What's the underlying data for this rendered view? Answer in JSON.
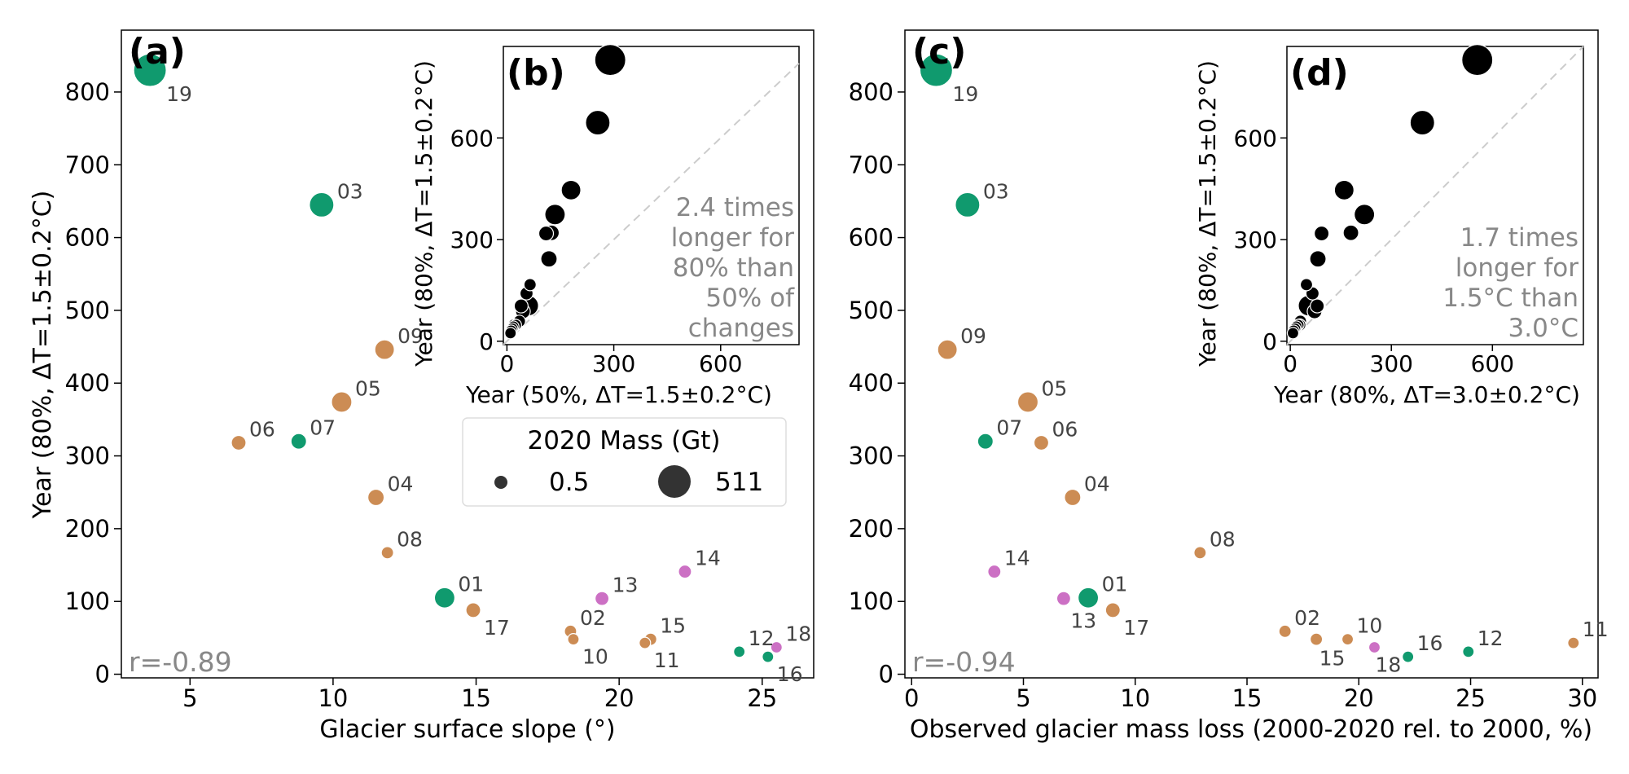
{
  "colors": {
    "green": "#109a6e",
    "orange": "#cc8c54",
    "pink": "#cc70c4",
    "black": "#000000",
    "grey_text": "#888888",
    "diag": "#cccccc"
  },
  "chart_data": [
    {
      "panel": "(a)",
      "type": "scatter",
      "xlabel": "Glacier surface slope (°)",
      "ylabel": "Year (80%, ΔT=1.5±0.2°C)",
      "xlim": [
        2.6,
        26.8
      ],
      "ylim": [
        -5,
        885
      ],
      "xticks": [
        5,
        10,
        15,
        20,
        25
      ],
      "yticks": [
        0,
        100,
        200,
        300,
        400,
        500,
        600,
        700,
        800
      ],
      "annotation": "r=-0.89",
      "points": [
        {
          "label": "19",
          "x": 3.6,
          "y": 830,
          "color": "green",
          "size": 40,
          "dx": 0,
          "dy": 38
        },
        {
          "label": "03",
          "x": 9.6,
          "y": 645,
          "color": "green",
          "size": 30,
          "dx": 4,
          "dy": -8
        },
        {
          "label": "09",
          "x": 11.8,
          "y": 446,
          "color": "orange",
          "size": 24,
          "dx": 4,
          "dy": -8
        },
        {
          "label": "05",
          "x": 10.3,
          "y": 374,
          "color": "orange",
          "size": 25,
          "dx": 4,
          "dy": -8
        },
        {
          "label": "06",
          "x": 6.7,
          "y": 318,
          "color": "orange",
          "size": 18,
          "dx": 4,
          "dy": -8
        },
        {
          "label": "07",
          "x": 8.8,
          "y": 320,
          "color": "green",
          "size": 19,
          "dx": 4,
          "dy": -8
        },
        {
          "label": "04",
          "x": 11.5,
          "y": 243,
          "color": "orange",
          "size": 20,
          "dx": 4,
          "dy": -8
        },
        {
          "label": "08",
          "x": 11.9,
          "y": 167,
          "color": "orange",
          "size": 15,
          "dx": 4,
          "dy": -8
        },
        {
          "label": "01",
          "x": 13.9,
          "y": 105,
          "color": "green",
          "size": 25,
          "dx": 4,
          "dy": -8
        },
        {
          "label": "17",
          "x": 14.9,
          "y": 88,
          "color": "orange",
          "size": 18,
          "dx": 4,
          "dy": 30
        },
        {
          "label": "13",
          "x": 19.4,
          "y": 104,
          "color": "pink",
          "size": 17,
          "dx": 4,
          "dy": -8
        },
        {
          "label": "14",
          "x": 22.3,
          "y": 141,
          "color": "pink",
          "size": 16,
          "dx": 4,
          "dy": -8
        },
        {
          "label": "02",
          "x": 18.3,
          "y": 59,
          "color": "orange",
          "size": 15,
          "dx": 4,
          "dy": -8
        },
        {
          "label": "10",
          "x": 18.4,
          "y": 48,
          "color": "orange",
          "size": 14,
          "dx": 4,
          "dy": 30
        },
        {
          "label": "15",
          "x": 21.1,
          "y": 48,
          "color": "orange",
          "size": 15,
          "dx": 4,
          "dy": -8
        },
        {
          "label": "11",
          "x": 20.9,
          "y": 43,
          "color": "orange",
          "size": 14,
          "dx": 4,
          "dy": 30
        },
        {
          "label": "12",
          "x": 24.2,
          "y": 31,
          "color": "green",
          "size": 14,
          "dx": 4,
          "dy": -8
        },
        {
          "label": "18",
          "x": 25.5,
          "y": 37,
          "color": "pink",
          "size": 14,
          "dx": 4,
          "dy": -8
        },
        {
          "label": "16",
          "x": 25.2,
          "y": 24,
          "color": "green",
          "size": 14,
          "dx": 4,
          "dy": 30
        }
      ]
    },
    {
      "panel": "(b)",
      "type": "scatter",
      "xlabel": "Year (50%, ΔT=1.5±0.2°C)",
      "ylabel": "Year (80%, ΔT=1.5±0.2°C)",
      "xlim": [
        -10,
        820
      ],
      "ylim": [
        -10,
        870
      ],
      "xticks": [
        0,
        300,
        600
      ],
      "yticks": [
        0,
        300,
        600
      ],
      "annotation": [
        "2.4 times",
        "longer for",
        "80% than",
        "50% of",
        "changes"
      ],
      "points": [
        {
          "x": 290,
          "y": 830,
          "size": 38
        },
        {
          "x": 255,
          "y": 645,
          "size": 30
        },
        {
          "x": 180,
          "y": 446,
          "size": 24
        },
        {
          "x": 135,
          "y": 374,
          "size": 25
        },
        {
          "x": 125,
          "y": 320,
          "size": 19
        },
        {
          "x": 110,
          "y": 318,
          "size": 18
        },
        {
          "x": 118,
          "y": 243,
          "size": 20
        },
        {
          "x": 65,
          "y": 167,
          "size": 15
        },
        {
          "x": 55,
          "y": 141,
          "size": 16
        },
        {
          "x": 60,
          "y": 105,
          "size": 25
        },
        {
          "x": 40,
          "y": 104,
          "size": 17
        },
        {
          "x": 45,
          "y": 88,
          "size": 18
        },
        {
          "x": 35,
          "y": 59,
          "size": 15
        },
        {
          "x": 25,
          "y": 48,
          "size": 14
        },
        {
          "x": 20,
          "y": 48,
          "size": 15
        },
        {
          "x": 18,
          "y": 43,
          "size": 14
        },
        {
          "x": 15,
          "y": 37,
          "size": 14
        },
        {
          "x": 12,
          "y": 31,
          "size": 14
        },
        {
          "x": 10,
          "y": 24,
          "size": 14
        }
      ]
    },
    {
      "panel": "(c)",
      "type": "scatter",
      "xlabel": "Observed glacier mass loss (2000-2020 rel. to 2000, %)",
      "ylabel": "",
      "xlim": [
        -0.3,
        30.7
      ],
      "ylim": [
        -5,
        885
      ],
      "xticks": [
        0,
        5,
        10,
        15,
        20,
        25,
        30
      ],
      "yticks": [
        0,
        100,
        200,
        300,
        400,
        500,
        600,
        700,
        800
      ],
      "annotation": "r=-0.94",
      "points": [
        {
          "label": "19",
          "x": 1.1,
          "y": 830,
          "color": "green",
          "size": 40,
          "dx": 0,
          "dy": 38
        },
        {
          "label": "03",
          "x": 2.5,
          "y": 645,
          "color": "green",
          "size": 30,
          "dx": 4,
          "dy": -8
        },
        {
          "label": "09",
          "x": 1.6,
          "y": 446,
          "color": "orange",
          "size": 24,
          "dx": 4,
          "dy": -8
        },
        {
          "label": "05",
          "x": 5.2,
          "y": 374,
          "color": "orange",
          "size": 25,
          "dx": 4,
          "dy": -8
        },
        {
          "label": "07",
          "x": 3.3,
          "y": 320,
          "color": "green",
          "size": 19,
          "dx": 4,
          "dy": -8
        },
        {
          "label": "06",
          "x": 5.8,
          "y": 318,
          "color": "orange",
          "size": 18,
          "dx": 4,
          "dy": -8
        },
        {
          "label": "04",
          "x": 7.2,
          "y": 243,
          "color": "orange",
          "size": 20,
          "dx": 4,
          "dy": -8
        },
        {
          "label": "08",
          "x": 12.9,
          "y": 167,
          "color": "orange",
          "size": 15,
          "dx": 4,
          "dy": -8
        },
        {
          "label": "14",
          "x": 3.7,
          "y": 141,
          "color": "pink",
          "size": 16,
          "dx": 4,
          "dy": -8
        },
        {
          "label": "13",
          "x": 6.8,
          "y": 104,
          "color": "pink",
          "size": 17,
          "dx": 0,
          "dy": 36
        },
        {
          "label": "01",
          "x": 7.9,
          "y": 105,
          "color": "green",
          "size": 25,
          "dx": 4,
          "dy": -8
        },
        {
          "label": "17",
          "x": 9.0,
          "y": 88,
          "color": "orange",
          "size": 18,
          "dx": 4,
          "dy": 30
        },
        {
          "label": "02",
          "x": 16.7,
          "y": 59,
          "color": "orange",
          "size": 15,
          "dx": 4,
          "dy": -8
        },
        {
          "label": "15",
          "x": 18.1,
          "y": 48,
          "color": "orange",
          "size": 15,
          "dx": -4,
          "dy": 32
        },
        {
          "label": "10",
          "x": 19.5,
          "y": 48,
          "color": "orange",
          "size": 14,
          "dx": 4,
          "dy": -8
        },
        {
          "label": "18",
          "x": 20.7,
          "y": 37,
          "color": "pink",
          "size": 14,
          "dx": -6,
          "dy": 30
        },
        {
          "label": "16",
          "x": 22.2,
          "y": 24,
          "color": "green",
          "size": 14,
          "dx": 4,
          "dy": -8
        },
        {
          "label": "12",
          "x": 24.9,
          "y": 31,
          "color": "green",
          "size": 14,
          "dx": 4,
          "dy": -8
        },
        {
          "label": "11",
          "x": 29.6,
          "y": 43,
          "color": "orange",
          "size": 14,
          "dx": 4,
          "dy": -8
        }
      ]
    },
    {
      "panel": "(d)",
      "type": "scatter",
      "xlabel": "Year (80%, ΔT=3.0±0.2°C)",
      "ylabel": "Year (80%, ΔT=1.5±0.2°C)",
      "xlim": [
        -10,
        870
      ],
      "ylim": [
        -10,
        870
      ],
      "xticks": [
        0,
        300,
        600
      ],
      "yticks": [
        0,
        300,
        600
      ],
      "annotation": [
        "1.7 times",
        "longer for",
        "1.5°C than",
        "3.0°C"
      ],
      "points": [
        {
          "x": 555,
          "y": 830,
          "size": 38
        },
        {
          "x": 392,
          "y": 645,
          "size": 30
        },
        {
          "x": 160,
          "y": 446,
          "size": 24
        },
        {
          "x": 220,
          "y": 374,
          "size": 25
        },
        {
          "x": 180,
          "y": 320,
          "size": 19
        },
        {
          "x": 93,
          "y": 318,
          "size": 18
        },
        {
          "x": 82,
          "y": 243,
          "size": 20
        },
        {
          "x": 48,
          "y": 167,
          "size": 15
        },
        {
          "x": 66,
          "y": 141,
          "size": 16
        },
        {
          "x": 54,
          "y": 105,
          "size": 25
        },
        {
          "x": 80,
          "y": 104,
          "size": 17
        },
        {
          "x": 72,
          "y": 88,
          "size": 18
        },
        {
          "x": 30,
          "y": 59,
          "size": 15
        },
        {
          "x": 24,
          "y": 48,
          "size": 14
        },
        {
          "x": 28,
          "y": 48,
          "size": 15
        },
        {
          "x": 18,
          "y": 43,
          "size": 14
        },
        {
          "x": 14,
          "y": 37,
          "size": 14
        },
        {
          "x": 10,
          "y": 31,
          "size": 14
        },
        {
          "x": 8,
          "y": 24,
          "size": 14
        }
      ]
    }
  ],
  "legend": {
    "title": "2020 Mass (Gt)",
    "small_label": "0.5",
    "large_label": "511"
  }
}
